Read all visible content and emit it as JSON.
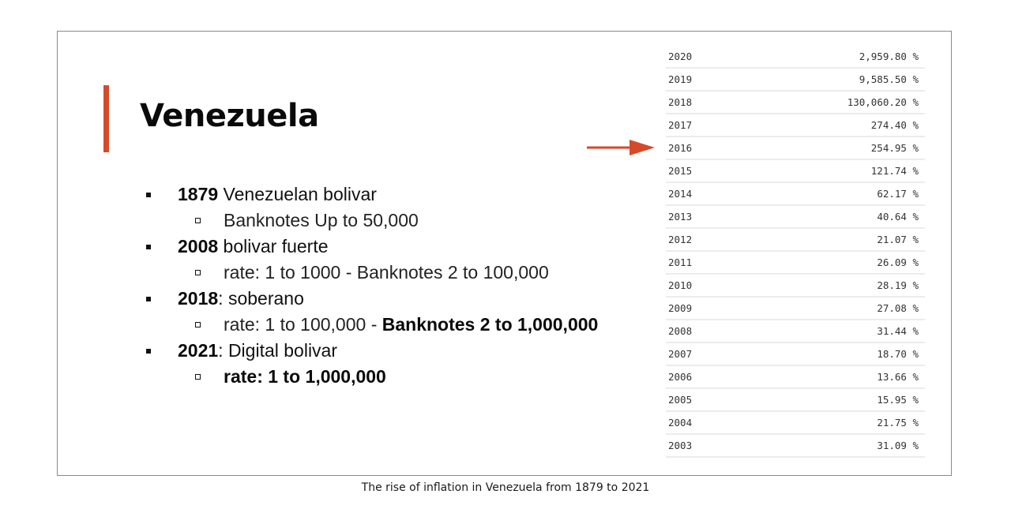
{
  "slide": {
    "title": "Venezuela",
    "accent_color": "#d64a2b",
    "bullets": [
      {
        "year": "1879",
        "text": " Venezuelan bolivar"
      },
      {
        "text": "Banknotes Up to 50,000"
      },
      {
        "year": "2008",
        "text": " bolivar fuerte"
      },
      {
        "text": "rate: 1 to 1000 - Banknotes 2 to 100,000"
      },
      {
        "year": "2018",
        "text": ": soberano"
      },
      {
        "text": "rate: 1 to 100,000 - ",
        "bold": "Banknotes 2 to 1,000,000"
      },
      {
        "year": "2021",
        "text": ": Digital bolivar"
      },
      {
        "bold": "rate: 1 to 1,000,000"
      }
    ],
    "arrow_target_year": "2016",
    "table": {
      "rows": [
        {
          "year": "2020",
          "value": "2,959.80 %"
        },
        {
          "year": "2019",
          "value": "9,585.50 %"
        },
        {
          "year": "2018",
          "value": "130,060.20 %"
        },
        {
          "year": "2017",
          "value": "274.40 %"
        },
        {
          "year": "2016",
          "value": "254.95 %"
        },
        {
          "year": "2015",
          "value": "121.74 %"
        },
        {
          "year": "2014",
          "value": "62.17 %"
        },
        {
          "year": "2013",
          "value": "40.64 %"
        },
        {
          "year": "2012",
          "value": "21.07 %"
        },
        {
          "year": "2011",
          "value": "26.09 %"
        },
        {
          "year": "2010",
          "value": "28.19 %"
        },
        {
          "year": "2009",
          "value": "27.08 %"
        },
        {
          "year": "2008",
          "value": "31.44 %"
        },
        {
          "year": "2007",
          "value": "18.70 %"
        },
        {
          "year": "2006",
          "value": "13.66 %"
        },
        {
          "year": "2005",
          "value": "15.95 %"
        },
        {
          "year": "2004",
          "value": "21.75 %"
        },
        {
          "year": "2003",
          "value": "31.09 %"
        }
      ]
    }
  },
  "caption": "The rise of inflation in Venezuela from 1879 to 2021"
}
